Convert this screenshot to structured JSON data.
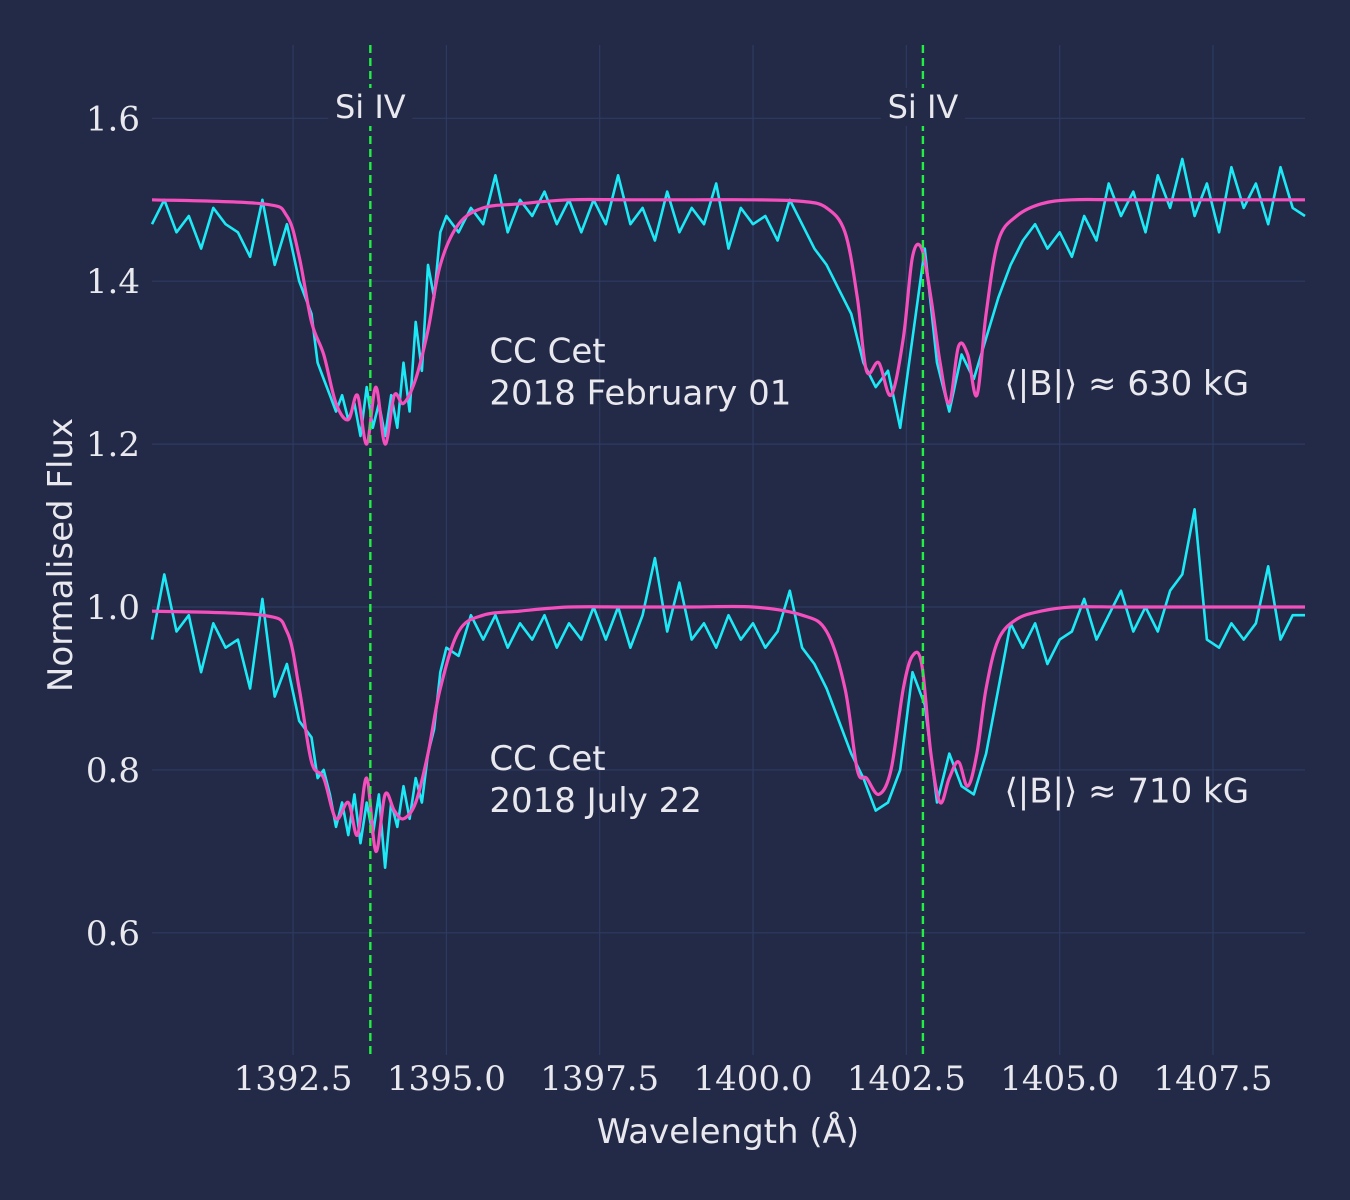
{
  "chart_data": {
    "type": "line",
    "xlabel": "Wavelength (Å)",
    "ylabel": "Normalised Flux",
    "xlim": [
      1390.2,
      1409.0
    ],
    "ylim": [
      0.45,
      1.69
    ],
    "x_ticks": [
      1392.5,
      1395.0,
      1397.5,
      1400.0,
      1402.5,
      1405.0,
      1407.5
    ],
    "x_tick_labels": [
      "1392.5",
      "1395.0",
      "1397.5",
      "1400.0",
      "1402.5",
      "1405.0",
      "1407.5"
    ],
    "y_ticks": [
      0.6,
      0.8,
      1.0,
      1.2,
      1.4,
      1.6
    ],
    "y_tick_labels": [
      "0.6",
      "0.8",
      "1.0",
      "1.2",
      "1.4",
      "1.6"
    ],
    "grid": true,
    "reference_lines": [
      {
        "x": 1393.76,
        "label": "Si IV",
        "color": "#22ee44"
      },
      {
        "x": 1402.77,
        "label": "Si IV",
        "color": "#22ee44"
      }
    ],
    "annotations": [
      {
        "text": [
          "CC Cet",
          "2018 February 01"
        ],
        "x": 1395.7,
        "y": 1.3
      },
      {
        "text": [
          "CC Cet",
          "2018 July 22"
        ],
        "x": 1395.7,
        "y": 0.8
      },
      {
        "text": "⟨|B|⟩ ≈ 630 kG",
        "x": 1404.1,
        "y": 1.26
      },
      {
        "text": "⟨|B|⟩ ≈ 710 kG",
        "x": 1404.1,
        "y": 0.76
      }
    ],
    "series": [
      {
        "observed_color": "#1de9f6",
        "model_color": "#f44fbd",
        "continuum": 1.5,
        "model_x": [
          1390.2,
          1392.0,
          1392.4,
          1392.6,
          1392.8,
          1393.0,
          1393.2,
          1393.4,
          1393.55,
          1393.7,
          1393.85,
          1394.0,
          1394.15,
          1394.3,
          1394.5,
          1394.7,
          1394.9,
          1395.2,
          1395.6,
          1396.2,
          1397.0,
          1398.0,
          1399.0,
          1400.0,
          1400.8,
          1401.2,
          1401.5,
          1401.7,
          1401.85,
          1402.05,
          1402.25,
          1402.45,
          1402.6,
          1402.75,
          1402.9,
          1403.05,
          1403.2,
          1403.35,
          1403.5,
          1403.65,
          1403.8,
          1404.0,
          1404.3,
          1404.7,
          1405.2,
          1406.0,
          1407.0,
          1409.0
        ],
        "model_y": [
          1.5,
          1.495,
          1.48,
          1.43,
          1.35,
          1.31,
          1.25,
          1.23,
          1.26,
          1.2,
          1.27,
          1.2,
          1.26,
          1.25,
          1.28,
          1.34,
          1.42,
          1.47,
          1.49,
          1.495,
          1.5,
          1.5,
          1.5,
          1.5,
          1.498,
          1.49,
          1.46,
          1.38,
          1.29,
          1.3,
          1.26,
          1.33,
          1.43,
          1.44,
          1.38,
          1.3,
          1.25,
          1.32,
          1.31,
          1.26,
          1.36,
          1.45,
          1.48,
          1.495,
          1.5,
          1.5,
          1.5,
          1.5
        ],
        "observed_x": [
          1390.2,
          1390.4,
          1390.6,
          1390.8,
          1391.0,
          1391.2,
          1391.4,
          1391.6,
          1391.8,
          1392.0,
          1392.2,
          1392.4,
          1392.6,
          1392.8,
          1392.9,
          1393.0,
          1393.1,
          1393.2,
          1393.3,
          1393.4,
          1393.5,
          1393.6,
          1393.7,
          1393.8,
          1393.9,
          1394.0,
          1394.1,
          1394.2,
          1394.3,
          1394.4,
          1394.5,
          1394.6,
          1394.7,
          1394.8,
          1394.9,
          1395.0,
          1395.2,
          1395.4,
          1395.6,
          1395.8,
          1396.0,
          1396.2,
          1396.4,
          1396.6,
          1396.8,
          1397.0,
          1397.2,
          1397.4,
          1397.6,
          1397.8,
          1398.0,
          1398.2,
          1398.4,
          1398.6,
          1398.8,
          1399.0,
          1399.2,
          1399.4,
          1399.6,
          1399.8,
          1400.0,
          1400.2,
          1400.4,
          1400.6,
          1400.8,
          1401.0,
          1401.2,
          1401.4,
          1401.6,
          1401.8,
          1402.0,
          1402.2,
          1402.4,
          1402.6,
          1402.8,
          1403.0,
          1403.2,
          1403.4,
          1403.6,
          1403.8,
          1404.0,
          1404.2,
          1404.4,
          1404.6,
          1404.8,
          1405.0,
          1405.2,
          1405.4,
          1405.6,
          1405.8,
          1406.0,
          1406.2,
          1406.4,
          1406.6,
          1406.8,
          1407.0,
          1407.2,
          1407.4,
          1407.6,
          1407.8,
          1408.0,
          1408.2,
          1408.4,
          1408.6,
          1408.8,
          1409.0
        ],
        "observed_y": [
          1.47,
          1.5,
          1.46,
          1.48,
          1.44,
          1.49,
          1.47,
          1.46,
          1.43,
          1.5,
          1.42,
          1.47,
          1.4,
          1.36,
          1.3,
          1.28,
          1.26,
          1.24,
          1.26,
          1.23,
          1.25,
          1.21,
          1.27,
          1.22,
          1.25,
          1.21,
          1.26,
          1.22,
          1.3,
          1.24,
          1.35,
          1.29,
          1.42,
          1.38,
          1.46,
          1.48,
          1.46,
          1.49,
          1.47,
          1.53,
          1.46,
          1.5,
          1.48,
          1.51,
          1.47,
          1.5,
          1.46,
          1.5,
          1.47,
          1.53,
          1.47,
          1.49,
          1.45,
          1.51,
          1.46,
          1.49,
          1.47,
          1.52,
          1.44,
          1.49,
          1.47,
          1.48,
          1.45,
          1.5,
          1.47,
          1.44,
          1.42,
          1.39,
          1.36,
          1.3,
          1.27,
          1.29,
          1.22,
          1.33,
          1.44,
          1.3,
          1.24,
          1.31,
          1.28,
          1.33,
          1.38,
          1.42,
          1.45,
          1.47,
          1.44,
          1.46,
          1.43,
          1.48,
          1.45,
          1.52,
          1.48,
          1.51,
          1.46,
          1.53,
          1.49,
          1.55,
          1.48,
          1.52,
          1.46,
          1.54,
          1.49,
          1.52,
          1.47,
          1.54,
          1.49,
          1.48
        ]
      },
      {
        "observed_color": "#1de9f6",
        "model_color": "#f44fbd",
        "continuum": 1.0,
        "model_x": [
          1390.2,
          1392.0,
          1392.4,
          1392.6,
          1392.8,
          1393.0,
          1393.2,
          1393.4,
          1393.55,
          1393.7,
          1393.85,
          1394.0,
          1394.15,
          1394.3,
          1394.5,
          1394.7,
          1394.9,
          1395.2,
          1395.6,
          1396.2,
          1397.0,
          1398.0,
          1399.0,
          1400.0,
          1400.8,
          1401.2,
          1401.5,
          1401.7,
          1401.85,
          1402.05,
          1402.25,
          1402.45,
          1402.6,
          1402.75,
          1402.9,
          1403.05,
          1403.2,
          1403.35,
          1403.5,
          1403.65,
          1403.8,
          1404.0,
          1404.3,
          1404.7,
          1405.2,
          1406.0,
          1407.0,
          1409.0
        ],
        "model_y": [
          0.995,
          0.99,
          0.97,
          0.9,
          0.81,
          0.79,
          0.74,
          0.76,
          0.72,
          0.79,
          0.7,
          0.77,
          0.75,
          0.74,
          0.76,
          0.82,
          0.9,
          0.97,
          0.99,
          0.995,
          1.0,
          1.0,
          1.0,
          1.0,
          0.99,
          0.97,
          0.9,
          0.8,
          0.79,
          0.77,
          0.8,
          0.9,
          0.94,
          0.93,
          0.82,
          0.76,
          0.79,
          0.81,
          0.78,
          0.82,
          0.9,
          0.96,
          0.985,
          0.995,
          1.0,
          1.0,
          1.0,
          1.0
        ],
        "observed_x": [
          1390.2,
          1390.4,
          1390.6,
          1390.8,
          1391.0,
          1391.2,
          1391.4,
          1391.6,
          1391.8,
          1392.0,
          1392.2,
          1392.4,
          1392.6,
          1392.8,
          1392.9,
          1393.0,
          1393.1,
          1393.2,
          1393.3,
          1393.4,
          1393.5,
          1393.6,
          1393.7,
          1393.8,
          1393.9,
          1394.0,
          1394.1,
          1394.2,
          1394.3,
          1394.4,
          1394.5,
          1394.6,
          1394.7,
          1394.8,
          1394.9,
          1395.0,
          1395.2,
          1395.4,
          1395.6,
          1395.8,
          1396.0,
          1396.2,
          1396.4,
          1396.6,
          1396.8,
          1397.0,
          1397.2,
          1397.4,
          1397.6,
          1397.8,
          1398.0,
          1398.2,
          1398.4,
          1398.6,
          1398.8,
          1399.0,
          1399.2,
          1399.4,
          1399.6,
          1399.8,
          1400.0,
          1400.2,
          1400.4,
          1400.6,
          1400.8,
          1401.0,
          1401.2,
          1401.4,
          1401.6,
          1401.8,
          1402.0,
          1402.2,
          1402.4,
          1402.6,
          1402.8,
          1403.0,
          1403.2,
          1403.4,
          1403.6,
          1403.8,
          1404.0,
          1404.2,
          1404.4,
          1404.6,
          1404.8,
          1405.0,
          1405.2,
          1405.4,
          1405.6,
          1405.8,
          1406.0,
          1406.2,
          1406.4,
          1406.6,
          1406.8,
          1407.0,
          1407.2,
          1407.4,
          1407.6,
          1407.8,
          1408.0,
          1408.2,
          1408.4,
          1408.6,
          1408.8,
          1409.0
        ],
        "observed_y": [
          0.96,
          1.04,
          0.97,
          0.99,
          0.92,
          0.98,
          0.95,
          0.96,
          0.9,
          1.01,
          0.89,
          0.93,
          0.86,
          0.84,
          0.79,
          0.8,
          0.77,
          0.73,
          0.76,
          0.72,
          0.77,
          0.71,
          0.76,
          0.72,
          0.77,
          0.68,
          0.76,
          0.73,
          0.78,
          0.74,
          0.79,
          0.76,
          0.82,
          0.85,
          0.92,
          0.95,
          0.94,
          0.99,
          0.96,
          0.99,
          0.95,
          0.98,
          0.96,
          0.99,
          0.95,
          0.98,
          0.96,
          1.0,
          0.96,
          1.0,
          0.95,
          0.99,
          1.06,
          0.97,
          1.03,
          0.96,
          0.98,
          0.95,
          0.99,
          0.96,
          0.98,
          0.95,
          0.97,
          1.02,
          0.95,
          0.93,
          0.9,
          0.86,
          0.82,
          0.79,
          0.75,
          0.76,
          0.8,
          0.92,
          0.88,
          0.76,
          0.82,
          0.78,
          0.77,
          0.82,
          0.9,
          0.98,
          0.95,
          0.98,
          0.93,
          0.96,
          0.97,
          1.01,
          0.96,
          0.99,
          1.02,
          0.97,
          1.0,
          0.97,
          1.02,
          1.04,
          1.12,
          0.96,
          0.95,
          0.98,
          0.96,
          0.98,
          1.05,
          0.96,
          0.99,
          0.99
        ]
      }
    ]
  }
}
